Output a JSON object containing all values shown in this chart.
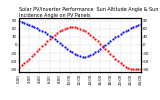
{
  "title": "Solar PV/Inverter Performance  Sun Altitude Angle & Sun Incidence Angle on PV Panels",
  "background_color": "#ffffff",
  "grid_color": "#888888",
  "blue_line_color": "#0000ff",
  "red_line_color": "#ff0000",
  "x_values": [
    0,
    0.5,
    1,
    1.5,
    2,
    2.5,
    3,
    3.5,
    4,
    4.5,
    5,
    5.5,
    6,
    6.5,
    7,
    7.5,
    8,
    8.5,
    9,
    9.5,
    10,
    10.5,
    11,
    11.5,
    12,
    12.5,
    13,
    13.5,
    14,
    14.5,
    15,
    15.5,
    16,
    16.5,
    17,
    17.5,
    18,
    18.5,
    19,
    19.5,
    20,
    20.5,
    21,
    21.5,
    22,
    22.5,
    23,
    23.5,
    24
  ],
  "blue_values": [
    90,
    87,
    83,
    79,
    75,
    71,
    67,
    62,
    57,
    52,
    47,
    41,
    35,
    29,
    22,
    15,
    8,
    1,
    -6,
    -14,
    -21,
    -27,
    -33,
    -38,
    -42,
    -44,
    -44,
    -42,
    -38,
    -33,
    -27,
    -21,
    -14,
    -6,
    1,
    8,
    15,
    22,
    29,
    35,
    41,
    47,
    52,
    57,
    62,
    67,
    71,
    75,
    79
  ],
  "red_values": [
    -80,
    -74,
    -67,
    -59,
    -51,
    -42,
    -33,
    -24,
    -14,
    -5,
    4,
    13,
    22,
    30,
    38,
    45,
    51,
    56,
    60,
    63,
    65,
    66,
    65,
    63,
    60,
    56,
    51,
    45,
    38,
    30,
    22,
    13,
    4,
    -5,
    -14,
    -24,
    -33,
    -42,
    -51,
    -59,
    -67,
    -74,
    -80,
    -86,
    -90,
    -90,
    -90,
    -90,
    -90
  ],
  "x_ticks": [
    0,
    2,
    4,
    6,
    8,
    10,
    12,
    14,
    16,
    18,
    20,
    22,
    24
  ],
  "x_tick_labels": [
    "0:00",
    "2:00",
    "4:00",
    "6:00",
    "8:00",
    "10:00",
    "12:00",
    "14:00",
    "16:00",
    "18:00",
    "20:00",
    "22:00",
    "24:00"
  ],
  "y_left_ticks": [
    -90,
    -60,
    -30,
    0,
    30,
    60,
    90
  ],
  "y_right_ticks": [
    -90,
    -60,
    -30,
    0,
    30,
    60,
    90
  ],
  "ylim": [
    -100,
    100
  ],
  "xlim": [
    0,
    24
  ],
  "title_fontsize": 3.5,
  "tick_fontsize": 2.8,
  "markersize": 1.2
}
